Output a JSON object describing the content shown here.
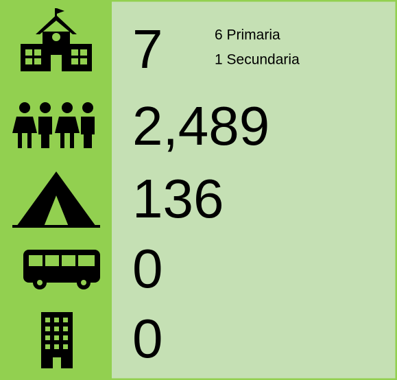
{
  "rows": [
    {
      "value": "7",
      "notes": [
        "6 Primaria",
        "1 Secundaria"
      ]
    },
    {
      "value": "2,489"
    },
    {
      "value": "136"
    },
    {
      "value": "0"
    },
    {
      "value": "0"
    }
  ]
}
